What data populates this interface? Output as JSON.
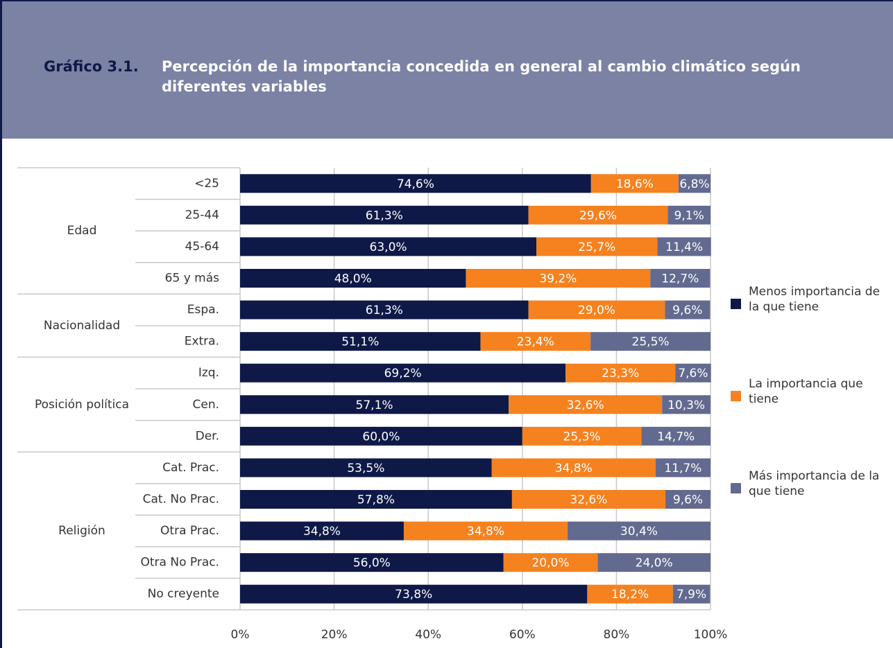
{
  "chart_data": {
    "type": "stacked-barh",
    "title_prefix": "Gráfico 3.1.",
    "title": "Percepción de la importancia concedida en general al cambio climático según diferentes variables",
    "categories": [
      "<25",
      "25-44",
      "45-64",
      "65 y más",
      "Espa.",
      "Extra.",
      "Izq.",
      "Cen.",
      "Der.",
      "Cat. Prac.",
      "Cat. No Prac.",
      "Otra Prac.",
      "Otra No Prac.",
      "No creyente"
    ],
    "category_groups": [
      "Edad",
      "Edad",
      "Edad",
      "Edad",
      "Nacionalidad",
      "Nacionalidad",
      "Posición política",
      "Posición política",
      "Posición política",
      "Religión",
      "Religión",
      "Religión",
      "Religión",
      "Religión"
    ],
    "series": [
      {
        "name": "Menos importancia de la que tiene",
        "color": "#0e1947",
        "values": [
          74.6,
          61.3,
          63.0,
          48.0,
          61.3,
          51.1,
          69.2,
          57.1,
          60.0,
          53.5,
          57.8,
          34.8,
          56.0,
          73.8
        ],
        "value_labels": [
          "74,6%",
          "61,3%",
          "63,0%",
          "48,0%",
          "61,3%",
          "51,1%",
          "69,2%",
          "57,1%",
          "60,0%",
          "53,5%",
          "57,8%",
          "34,8%",
          "56,0%",
          "73,8%"
        ]
      },
      {
        "name": "La importancia que tiene",
        "color": "#f5821f",
        "values": [
          18.6,
          29.6,
          25.7,
          39.2,
          29.0,
          23.4,
          23.3,
          32.6,
          25.3,
          34.8,
          32.6,
          34.8,
          20.0,
          18.2
        ],
        "value_labels": [
          "18,6%",
          "29,6%",
          "25,7%",
          "39,2%",
          "29,0%",
          "23,4%",
          "23,3%",
          "32,6%",
          "25,3%",
          "34,8%",
          "32,6%",
          "34,8%",
          "20,0%",
          "18,2%"
        ]
      },
      {
        "name": "Más importancia de la que tiene",
        "color": "#636a8f",
        "values": [
          6.8,
          9.1,
          11.4,
          12.7,
          9.6,
          25.5,
          7.6,
          10.3,
          14.7,
          11.7,
          9.6,
          30.4,
          24.0,
          7.9
        ],
        "value_labels": [
          "6,8%",
          "9,1%",
          "11,4%",
          "12,7%",
          "9,6%",
          "25,5%",
          "7,6%",
          "10,3%",
          "14,7%",
          "11,7%",
          "9,6%",
          "30,4%",
          "24,0%",
          "7,9%"
        ]
      }
    ],
    "xlim": [
      0,
      100
    ],
    "xticks": [
      {
        "value": 0,
        "label": "0%"
      },
      {
        "value": 20,
        "label": "20%"
      },
      {
        "value": 40,
        "label": "40%"
      },
      {
        "value": 60,
        "label": "60%"
      },
      {
        "value": 80,
        "label": "80%"
      },
      {
        "value": 100,
        "label": "100%"
      }
    ],
    "grid": true,
    "legend": "right"
  }
}
